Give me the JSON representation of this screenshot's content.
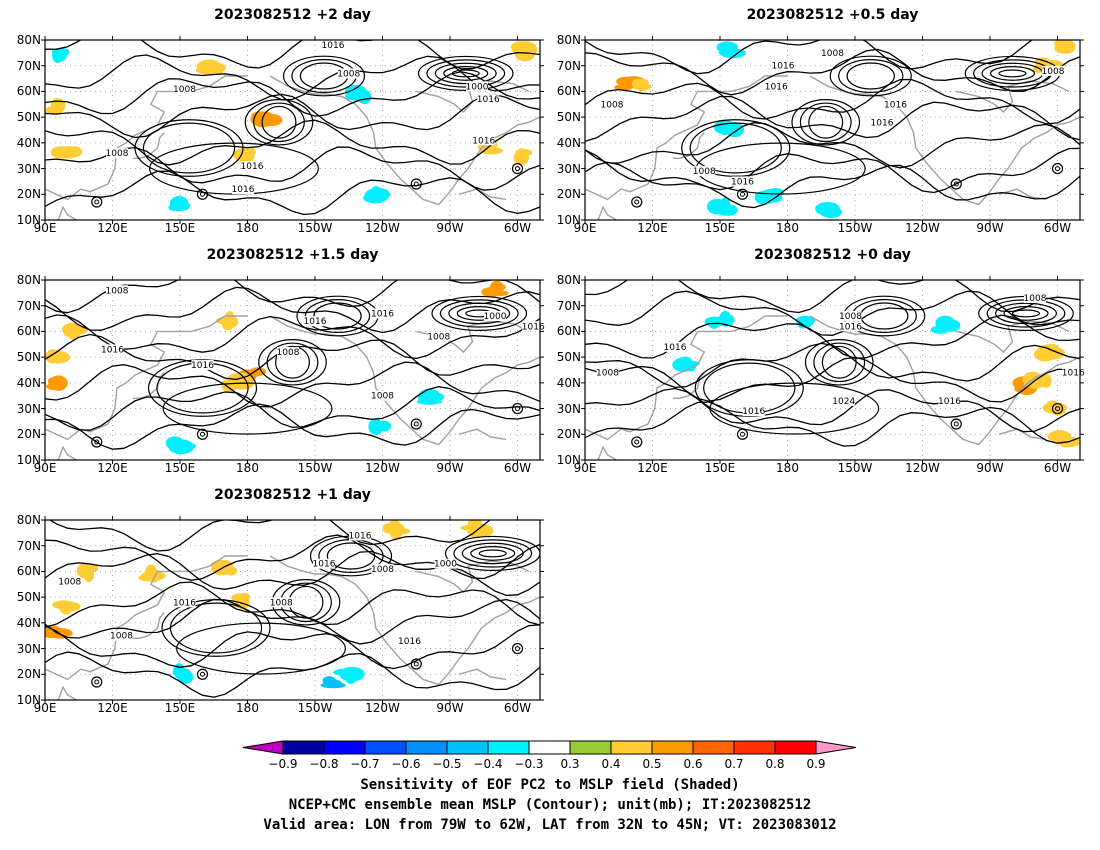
{
  "colorbar": {
    "labels": [
      "−0.9",
      "−0.8",
      "−0.7",
      "−0.6",
      "−0.5",
      "−0.4",
      "−0.3",
      "0.3",
      "0.4",
      "0.5",
      "0.6",
      "0.7",
      "0.8",
      "0.9"
    ],
    "colors": [
      "#c000c0",
      "#0000a0",
      "#0000ff",
      "#0050ff",
      "#0090ff",
      "#00c0ff",
      "#00f0ff",
      "#ffffff",
      "#99cc33",
      "#ffcc33",
      "#ff9900",
      "#ff6600",
      "#ff3300",
      "#ff0000",
      "#ff99cc"
    ]
  },
  "caption": {
    "line1": "Sensitivity of EOF PC2 to MSLP field (Shaded)",
    "line2": "NCEP+CMC ensemble mean MSLP (Contour); unit(mb); IT:2023082512",
    "line3": "Valid area: LON from 79W to 62W, LAT from 32N to 45N; VT: 2023083012"
  },
  "axes": {
    "lat_ticks": [
      "80N",
      "70N",
      "60N",
      "50N",
      "40N",
      "30N",
      "20N",
      "10N"
    ],
    "lon_ticks": [
      "90E",
      "120E",
      "150E",
      "180",
      "150W",
      "120W",
      "90W",
      "60W"
    ]
  },
  "chart_data": [
    {
      "type": "map",
      "title": "2023082512 +2 day",
      "xlim": [
        90,
        310
      ],
      "ylim": [
        10,
        80
      ],
      "contour_labels": [
        {
          "text": "1016",
          "lon": 218,
          "lat": 78
        },
        {
          "text": "1008",
          "lon": 225,
          "lat": 67
        },
        {
          "text": "1008",
          "lon": 152,
          "lat": 61
        },
        {
          "text": "1000",
          "lon": 282,
          "lat": 62
        },
        {
          "text": "1016",
          "lon": 287,
          "lat": 57
        },
        {
          "text": "1016",
          "lon": 285,
          "lat": 41
        },
        {
          "text": "1008",
          "lon": 122,
          "lat": 36
        },
        {
          "text": "1016",
          "lon": 182,
          "lat": 31
        },
        {
          "text": "1016",
          "lon": 178,
          "lat": 22
        }
      ],
      "shading": [
        {
          "lon": 96,
          "lat": 74,
          "value": -0.4
        },
        {
          "lon": 165,
          "lat": 68,
          "value": 0.4
        },
        {
          "lon": 96,
          "lat": 54,
          "value": 0.4
        },
        {
          "lon": 100,
          "lat": 36,
          "value": 0.4
        },
        {
          "lon": 188,
          "lat": 50,
          "value": 0.5
        },
        {
          "lon": 180,
          "lat": 35,
          "value": 0.4
        },
        {
          "lon": 231,
          "lat": 59,
          "value": -0.4
        },
        {
          "lon": 288,
          "lat": 38,
          "value": 0.4
        },
        {
          "lon": 302,
          "lat": 35,
          "value": 0.4
        },
        {
          "lon": 150,
          "lat": 16,
          "value": -0.4
        },
        {
          "lon": 237,
          "lat": 20,
          "value": -0.4
        },
        {
          "lon": 303,
          "lat": 76,
          "value": 0.4
        }
      ]
    },
    {
      "type": "map",
      "title": "2023082512 +0.5 day",
      "xlim": [
        90,
        310
      ],
      "ylim": [
        10,
        80
      ],
      "contour_labels": [
        {
          "text": "1008",
          "lon": 200,
          "lat": 75
        },
        {
          "text": "1016",
          "lon": 178,
          "lat": 70
        },
        {
          "text": "1016",
          "lon": 175,
          "lat": 62
        },
        {
          "text": "1008",
          "lon": 102,
          "lat": 55
        },
        {
          "text": "1016",
          "lon": 228,
          "lat": 55
        },
        {
          "text": "1016",
          "lon": 222,
          "lat": 48
        },
        {
          "text": "1008",
          "lon": 298,
          "lat": 68
        },
        {
          "text": "1008",
          "lon": 143,
          "lat": 29
        },
        {
          "text": "1016",
          "lon": 160,
          "lat": 25
        }
      ],
      "shading": [
        {
          "lon": 110,
          "lat": 63,
          "value": 0.5
        },
        {
          "lon": 116,
          "lat": 63,
          "value": 0.4
        },
        {
          "lon": 155,
          "lat": 45,
          "value": -0.4
        },
        {
          "lon": 155,
          "lat": 76,
          "value": -0.4
        },
        {
          "lon": 172,
          "lat": 20,
          "value": -0.4
        },
        {
          "lon": 200,
          "lat": 14,
          "value": -0.4
        },
        {
          "lon": 295,
          "lat": 70,
          "value": 0.4
        },
        {
          "lon": 305,
          "lat": 77,
          "value": 0.4
        },
        {
          "lon": 150,
          "lat": 15,
          "value": -0.4
        }
      ]
    },
    {
      "type": "map",
      "title": "2023082512 +1.5 day",
      "xlim": [
        90,
        310
      ],
      "ylim": [
        10,
        80
      ],
      "contour_labels": [
        {
          "text": "1008",
          "lon": 122,
          "lat": 76
        },
        {
          "text": "1016",
          "lon": 210,
          "lat": 64
        },
        {
          "text": "1016",
          "lon": 240,
          "lat": 67
        },
        {
          "text": "1008",
          "lon": 198,
          "lat": 52
        },
        {
          "text": "1016",
          "lon": 120,
          "lat": 53
        },
        {
          "text": "1016",
          "lon": 160,
          "lat": 47
        },
        {
          "text": "1000",
          "lon": 290,
          "lat": 66
        },
        {
          "text": "1016",
          "lon": 307,
          "lat": 62
        },
        {
          "text": "1008",
          "lon": 265,
          "lat": 58
        },
        {
          "text": "1008",
          "lon": 240,
          "lat": 35
        }
      ],
      "shading": [
        {
          "lon": 96,
          "lat": 40,
          "value": 0.5
        },
        {
          "lon": 96,
          "lat": 50,
          "value": 0.4
        },
        {
          "lon": 103,
          "lat": 60,
          "value": 0.4
        },
        {
          "lon": 183,
          "lat": 43,
          "value": 0.5
        },
        {
          "lon": 175,
          "lat": 40,
          "value": 0.4
        },
        {
          "lon": 172,
          "lat": 64,
          "value": 0.4
        },
        {
          "lon": 290,
          "lat": 76,
          "value": 0.5
        },
        {
          "lon": 240,
          "lat": 22,
          "value": -0.4
        },
        {
          "lon": 150,
          "lat": 16,
          "value": -0.4
        },
        {
          "lon": 262,
          "lat": 34,
          "value": -0.4
        }
      ]
    },
    {
      "type": "map",
      "title": "2023082512 +0 day",
      "xlim": [
        90,
        310
      ],
      "ylim": [
        10,
        80
      ],
      "contour_labels": [
        {
          "text": "1008",
          "lon": 290,
          "lat": 73
        },
        {
          "text": "1008",
          "lon": 208,
          "lat": 66
        },
        {
          "text": "1016",
          "lon": 208,
          "lat": 62
        },
        {
          "text": "1016",
          "lon": 130,
          "lat": 54
        },
        {
          "text": "1008",
          "lon": 100,
          "lat": 44
        },
        {
          "text": "1016",
          "lon": 165,
          "lat": 29
        },
        {
          "text": "1024",
          "lon": 205,
          "lat": 33
        },
        {
          "text": "1016",
          "lon": 252,
          "lat": 33
        },
        {
          "text": "1016",
          "lon": 307,
          "lat": 44
        }
      ],
      "shading": [
        {
          "lon": 135,
          "lat": 48,
          "value": -0.4
        },
        {
          "lon": 190,
          "lat": 63,
          "value": -0.4
        },
        {
          "lon": 250,
          "lat": 62,
          "value": -0.4
        },
        {
          "lon": 284,
          "lat": 39,
          "value": 0.5
        },
        {
          "lon": 292,
          "lat": 40,
          "value": 0.4
        },
        {
          "lon": 303,
          "lat": 18,
          "value": 0.4
        },
        {
          "lon": 300,
          "lat": 30,
          "value": 0.4
        },
        {
          "lon": 150,
          "lat": 64,
          "value": -0.4
        },
        {
          "lon": 295,
          "lat": 52,
          "value": 0.4
        }
      ]
    },
    {
      "type": "map",
      "title": "2023082512 +1 day",
      "xlim": [
        90,
        310
      ],
      "ylim": [
        10,
        80
      ],
      "contour_labels": [
        {
          "text": "1016",
          "lon": 230,
          "lat": 74
        },
        {
          "text": "1016",
          "lon": 214,
          "lat": 63
        },
        {
          "text": "1008",
          "lon": 240,
          "lat": 61
        },
        {
          "text": "1000",
          "lon": 268,
          "lat": 63
        },
        {
          "text": "1008",
          "lon": 101,
          "lat": 56
        },
        {
          "text": "1016",
          "lon": 152,
          "lat": 48
        },
        {
          "text": "1008",
          "lon": 195,
          "lat": 48
        },
        {
          "text": "1016",
          "lon": 252,
          "lat": 33
        },
        {
          "text": "1008",
          "lon": 124,
          "lat": 35
        }
      ],
      "shading": [
        {
          "lon": 95,
          "lat": 36,
          "value": 0.5
        },
        {
          "lon": 98,
          "lat": 46,
          "value": 0.4
        },
        {
          "lon": 108,
          "lat": 60,
          "value": 0.4
        },
        {
          "lon": 170,
          "lat": 61,
          "value": 0.4
        },
        {
          "lon": 178,
          "lat": 49,
          "value": 0.4
        },
        {
          "lon": 137,
          "lat": 59,
          "value": 0.4
        },
        {
          "lon": 218,
          "lat": 17,
          "value": -0.5
        },
        {
          "lon": 225,
          "lat": 20,
          "value": -0.4
        },
        {
          "lon": 150,
          "lat": 20,
          "value": -0.4
        },
        {
          "lon": 282,
          "lat": 77,
          "value": 0.4
        },
        {
          "lon": 248,
          "lat": 77,
          "value": 0.4
        }
      ]
    }
  ]
}
